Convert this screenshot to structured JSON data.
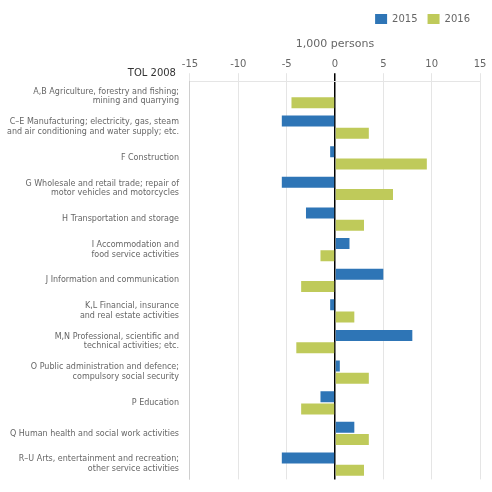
{
  "chart_data": {
    "type": "bar",
    "orientation": "horizontal",
    "x_label": "1,000 persons",
    "annotations": [
      {
        "text": "TOL 2008"
      }
    ],
    "categories": [
      "A,B Agriculture, forestry and fishing;\nmining and quarrying",
      "C–E Manufacturing; electricity, gas, steam\nand air conditioning and water supply; etc.",
      "F Construction",
      "G Wholesale and retail trade; repair of\nmotor vehicles and motorcycles",
      "H Transportation and storage",
      "I Accommodation and\nfood service activities",
      "J Information and communication",
      "K,L Financial, insurance\nand real estate activities",
      "M,N Professional, scientific and\ntechnical activities; etc.",
      "O Public administration and defence;\ncompulsory social security",
      "P Education",
      "Q Human health and social work activities",
      "R–U Arts, entertainment and recreation;\nother service activities"
    ],
    "series": [
      {
        "name": "2015",
        "color": "#2e75b6",
        "values": [
          0,
          -5.5,
          -0.5,
          -5.5,
          -3.0,
          1.5,
          5.0,
          -0.5,
          8.0,
          0.5,
          -1.5,
          2.0,
          -5.5
        ]
      },
      {
        "name": "2016",
        "color": "#bfca5a",
        "values": [
          -4.5,
          3.5,
          9.5,
          6.0,
          3.0,
          -1.5,
          -3.5,
          2.0,
          -4.0,
          3.5,
          -3.5,
          3.5,
          3.0
        ]
      }
    ],
    "xlim": [
      -15,
      15
    ],
    "xticks": [
      -15,
      -10,
      -5,
      0,
      5,
      10,
      15
    ],
    "grid": true,
    "legend": "upper right"
  }
}
